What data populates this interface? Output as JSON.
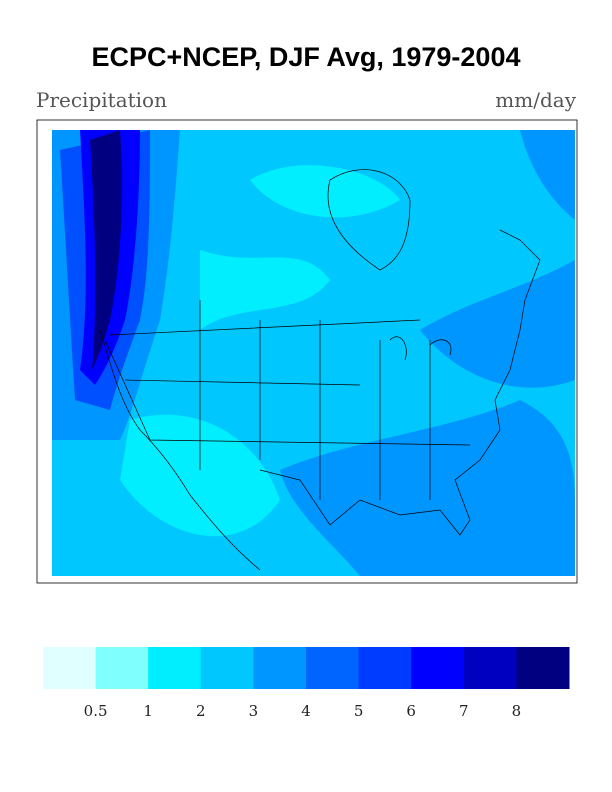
{
  "title": "ECPC+NCEP, DJF Avg, 1979-2004",
  "left_label": "Precipitation",
  "right_label": "mm/day",
  "colorbar": {
    "colors": [
      "#e0ffff",
      "#80ffff",
      "#00eeff",
      "#00c8ff",
      "#0096ff",
      "#0064ff",
      "#003cff",
      "#0000ff",
      "#0000c0",
      "#000080"
    ],
    "ticks": [
      0.5,
      1,
      2,
      3,
      4,
      5,
      6,
      7,
      8
    ]
  }
}
